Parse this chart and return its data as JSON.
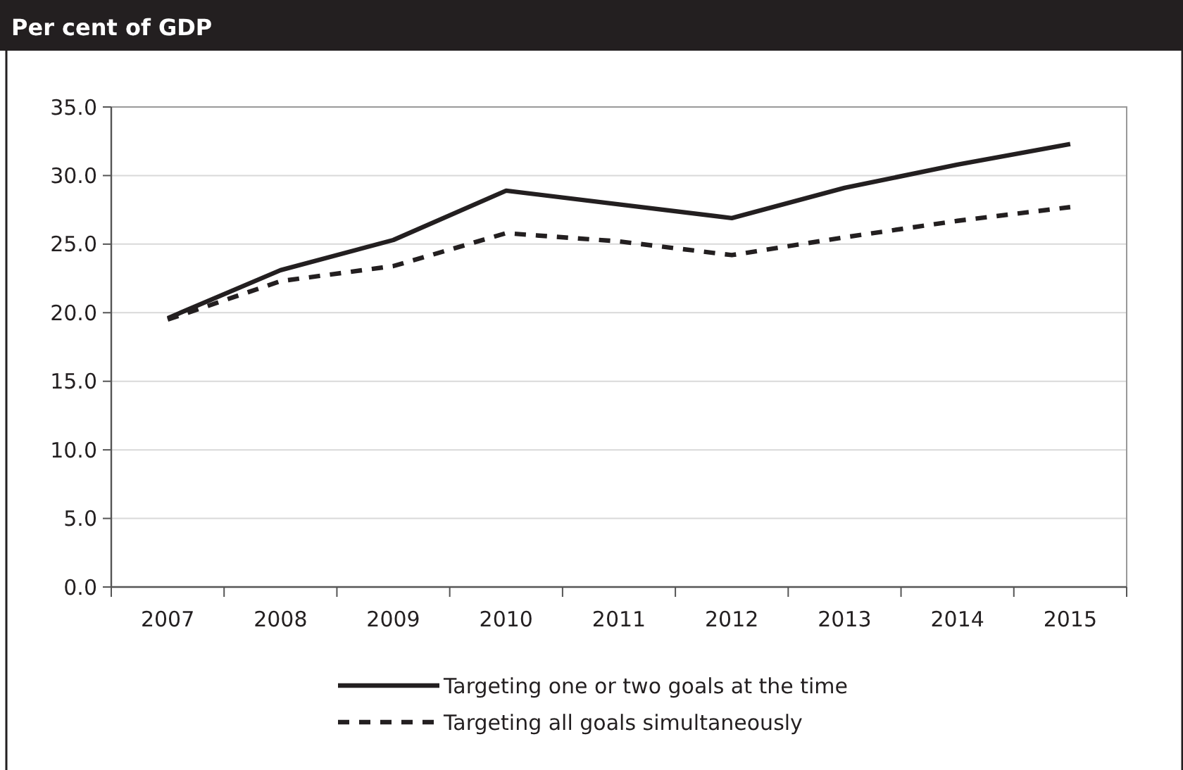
{
  "chart_data": {
    "type": "line",
    "title": "Per cent of GDP",
    "categories": [
      "2007",
      "2008",
      "2009",
      "2010",
      "2011",
      "2012",
      "2013",
      "2014",
      "2015"
    ],
    "series": [
      {
        "name": "Targeting one or two goals at the time",
        "color": "#231f20",
        "line_style": "solid",
        "values": [
          19.6,
          23.1,
          25.3,
          28.9,
          27.9,
          26.9,
          29.1,
          30.8,
          32.3
        ]
      },
      {
        "name": "Targeting all goals simultaneously",
        "color": "#231f20",
        "line_style": "dashed",
        "values": [
          19.5,
          22.3,
          23.4,
          25.8,
          25.2,
          24.2,
          25.5,
          26.7,
          27.7
        ]
      }
    ],
    "ylim": [
      0,
      35
    ],
    "yticks": [
      {
        "value": 0,
        "label": "0.0"
      },
      {
        "value": 5,
        "label": "5.0"
      },
      {
        "value": 10,
        "label": "10.0"
      },
      {
        "value": 15,
        "label": "15.0"
      },
      {
        "value": 20,
        "label": "20.0"
      },
      {
        "value": 25,
        "label": "25.0"
      },
      {
        "value": 30,
        "label": "30.0"
      },
      {
        "value": 35,
        "label": "35.0"
      }
    ],
    "grid": "y",
    "legend": "bottom",
    "marker": "none"
  }
}
